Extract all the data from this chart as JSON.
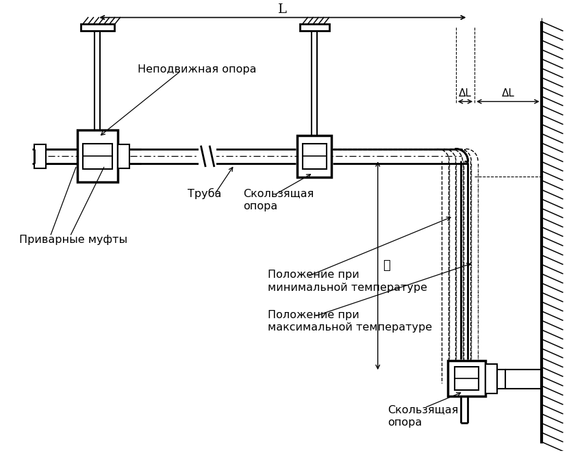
{
  "bg_color": "#ffffff",
  "lc": "#000000",
  "labels": {
    "L": "L",
    "dL": "ΔL",
    "l": "ℓ",
    "nepodvizhnaya": "Неподвижная опора",
    "truba": "Труба",
    "skolz1": "Скользящая\nопора",
    "privar": "Приварные муфты",
    "poloz_min": "Положение при\nминимальной температуре",
    "poloz_max": "Положение при\nмаксимальной температуре",
    "skolz2": "Скользящая\nопора"
  }
}
